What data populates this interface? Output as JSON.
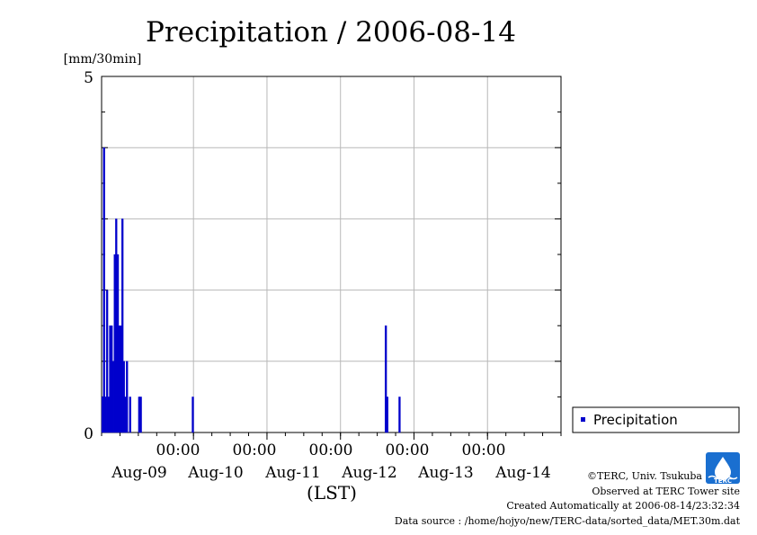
{
  "chart_data": {
    "type": "bar",
    "title": "Precipitation / 2006-08-14",
    "ylabel": "[mm/30min]",
    "xlabel": "(LST)",
    "ylim": [
      0,
      5
    ],
    "y_ticks": [
      "0",
      "5"
    ],
    "x_range": [
      "2006-08-08 18:00",
      "2006-08-14 24:00"
    ],
    "x_time_ticks": [
      "00:00",
      "00:00",
      "00:00",
      "00:00",
      "00:00"
    ],
    "x_date_labels": [
      "Aug-09",
      "Aug-10",
      "Aug-11",
      "Aug-12",
      "Aug-13",
      "Aug-14"
    ],
    "grid": true,
    "legend_position": "bottom-right outside plot",
    "color": "#0000cc",
    "series": [
      {
        "name": "Precipitation",
        "points": [
          [
            "2006-08-08 18:30",
            0.5
          ],
          [
            "2006-08-08 19:00",
            4.0
          ],
          [
            "2006-08-08 19:30",
            0.5
          ],
          [
            "2006-08-08 20:00",
            2.0
          ],
          [
            "2006-08-08 20:30",
            0.5
          ],
          [
            "2006-08-08 21:00",
            1.5
          ],
          [
            "2006-08-08 21:30",
            1.5
          ],
          [
            "2006-08-08 22:00",
            1.0
          ],
          [
            "2006-08-08 22:30",
            2.5
          ],
          [
            "2006-08-08 23:00",
            3.0
          ],
          [
            "2006-08-08 23:30",
            2.5
          ],
          [
            "2006-08-09 00:00",
            1.5
          ],
          [
            "2006-08-09 00:30",
            1.5
          ],
          [
            "2006-08-09 01:00",
            3.0
          ],
          [
            "2006-08-09 01:30",
            1.0
          ],
          [
            "2006-08-09 02:00",
            0.5
          ],
          [
            "2006-08-09 02:30",
            1.0
          ],
          [
            "2006-08-09 03:30",
            0.5
          ],
          [
            "2006-08-09 06:30",
            0.5
          ],
          [
            "2006-08-09 07:00",
            0.5
          ],
          [
            "2006-08-10 00:00",
            0.5
          ],
          [
            "2006-08-12 15:00",
            1.5
          ],
          [
            "2006-08-12 15:30",
            0.5
          ],
          [
            "2006-08-12 19:30",
            0.5
          ]
        ]
      }
    ]
  },
  "legend": {
    "label": "Precipitation"
  },
  "credits": {
    "copyright": "©TERC, Univ. Tsukuba",
    "site": "Observed at TERC Tower site",
    "created": "Created Automatically at 2006-08-14/23:32:34",
    "source": "Data source : /home/hojyo/new/TERC-data/sorted_data/MET.30m.dat",
    "logo_text": "TERC"
  }
}
